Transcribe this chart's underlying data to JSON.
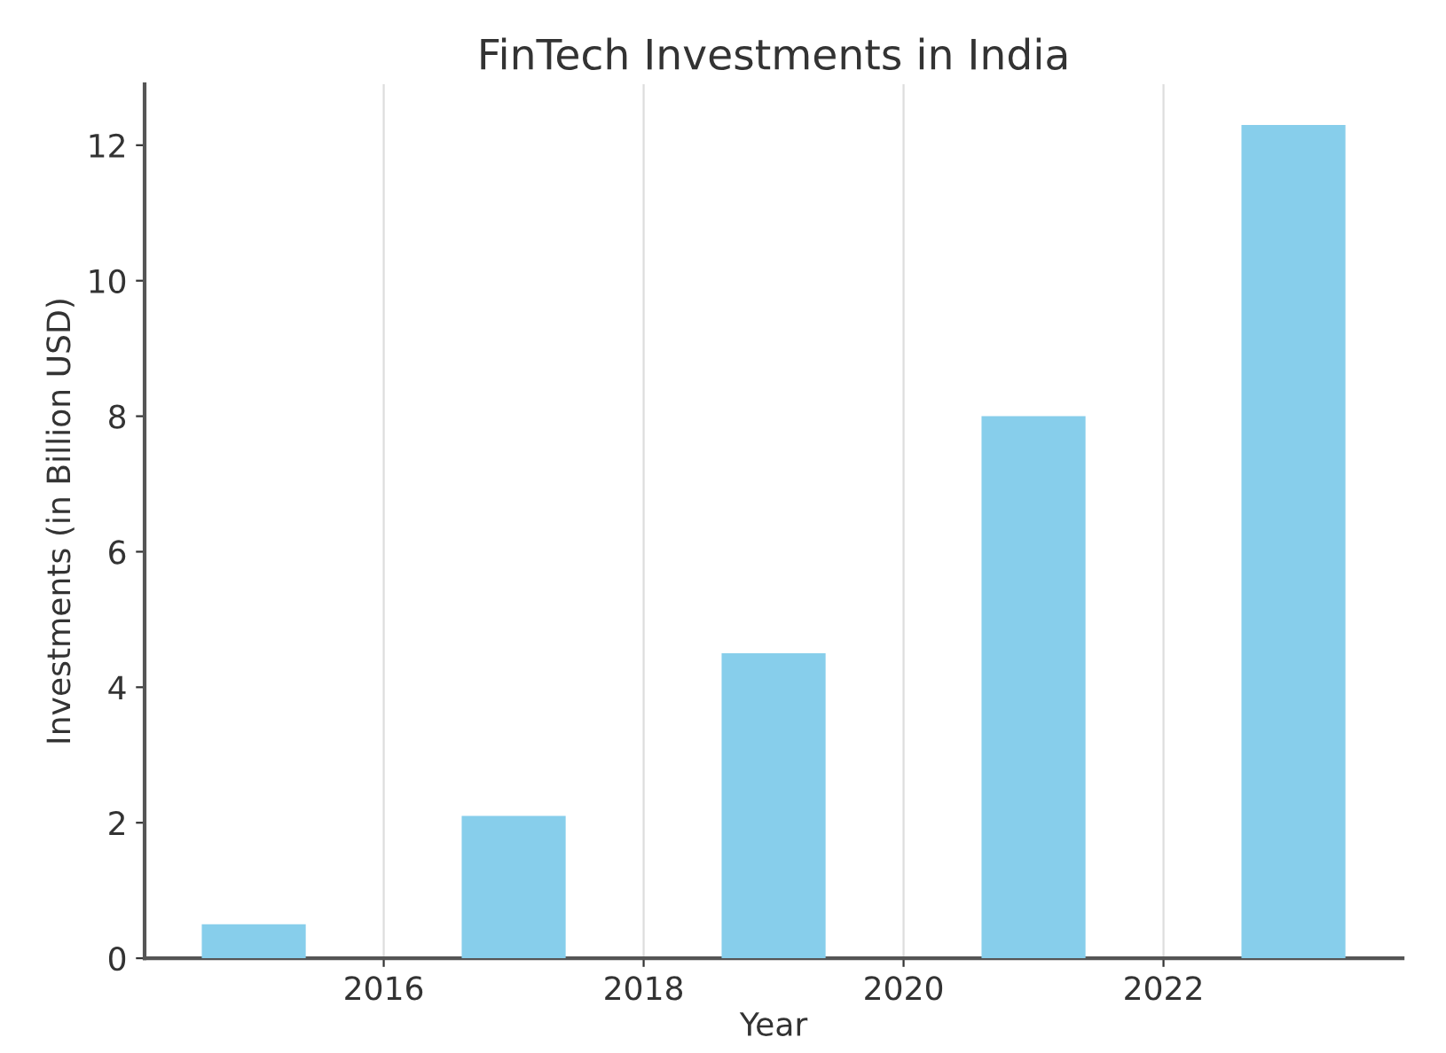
{
  "chart_data": {
    "type": "bar",
    "title": "FinTech Investments in India",
    "xlabel": "Year",
    "ylabel": "Investments (in Billion USD)",
    "x": [
      2015,
      2017,
      2019,
      2021,
      2023
    ],
    "values": [
      0.5,
      2.1,
      4.5,
      8.0,
      12.3
    ],
    "color": "#87ceeb",
    "xlim": [
      2014.16,
      2023.84
    ],
    "xticks": [
      2016,
      2018,
      2020,
      2022
    ],
    "ylim": [
      0,
      12.9
    ],
    "yticks": [
      0,
      2,
      4,
      6,
      8,
      10,
      12
    ],
    "grid": "x"
  }
}
